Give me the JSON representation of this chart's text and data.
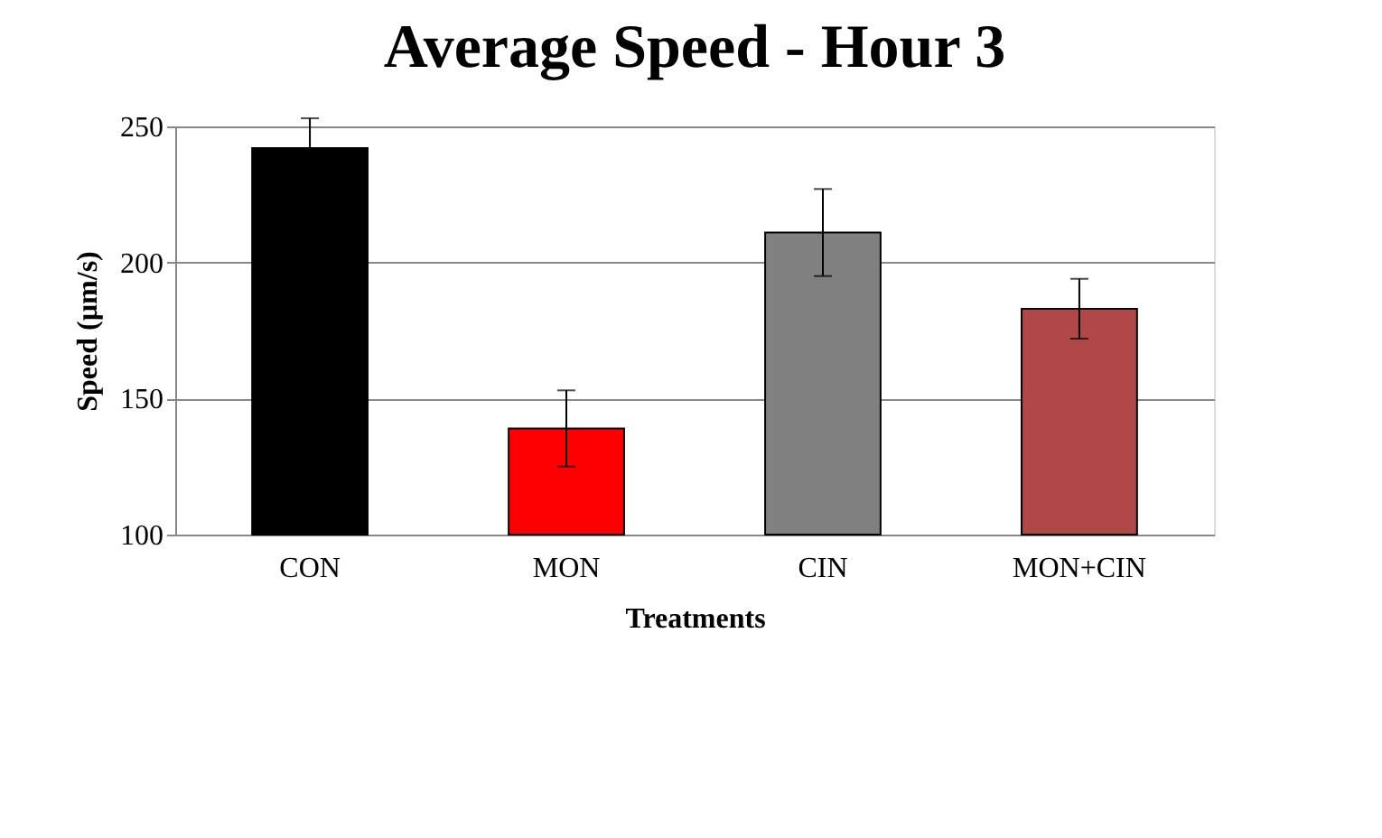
{
  "chart_data": {
    "type": "bar",
    "title": "Average Speed - Hour 3",
    "xlabel": "Treatments",
    "ylabel": "Speed (µm/s)",
    "categories": [
      "CON",
      "MON",
      "CIN",
      "MON+CIN"
    ],
    "values": [
      242,
      139,
      211,
      183
    ],
    "errors": [
      11,
      14,
      16,
      11
    ],
    "colors": [
      "#000000",
      "#ff0000",
      "#808080",
      "#b04848"
    ],
    "ylim": [
      100,
      250
    ],
    "yticks": [
      100,
      150,
      200,
      250
    ],
    "grid": "y"
  }
}
